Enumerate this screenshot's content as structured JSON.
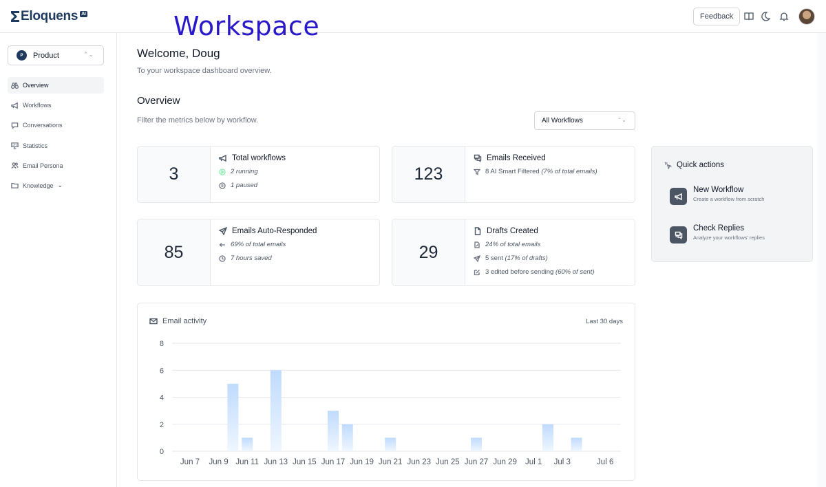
{
  "brand": {
    "name": "Eloquens",
    "badge": "AI"
  },
  "overlay_text": "Workspace",
  "header": {
    "feedback_label": "Feedback"
  },
  "sidebar": {
    "workspace": {
      "initial": "P",
      "name": "Product"
    },
    "items": [
      {
        "label": "Overview",
        "icon": "binoculars-icon",
        "active": true
      },
      {
        "label": "Workflows",
        "icon": "megaphone-icon"
      },
      {
        "label": "Conversations",
        "icon": "chat-icon"
      },
      {
        "label": "Statistics",
        "icon": "presentation-icon"
      },
      {
        "label": "Email Persona",
        "icon": "users-icon"
      },
      {
        "label": "Knowledge",
        "icon": "folder-icon"
      }
    ]
  },
  "main": {
    "welcome": "Welcome, Doug",
    "subtitle": "To your workspace dashboard overview.",
    "overview_title": "Overview",
    "filter_text": "Filter the metrics below by workflow.",
    "filter_select": "All Workflows"
  },
  "cards": {
    "workflows": {
      "value": "3",
      "title": "Total workflows",
      "running": "2 running",
      "paused": "1 paused"
    },
    "received": {
      "value": "123",
      "title": "Emails Received",
      "filtered": "8 AI Smart Filtered",
      "filtered_pct": "(7% of total emails)"
    },
    "auto": {
      "value": "85",
      "title": "Emails Auto-Responded",
      "pct": "69% of total emails",
      "saved": "7 hours saved"
    },
    "drafts": {
      "value": "29",
      "title": "Drafts Created",
      "pct": "24% of total emails",
      "sent": "5 sent",
      "sent_pct": "(17% of drafts)",
      "edited": "3 edited before sending",
      "edited_pct": "(60% of sent)"
    }
  },
  "quick_actions": {
    "title": "Quick actions",
    "items": [
      {
        "title": "New Workflow",
        "desc": "Create a workflow from scratch"
      },
      {
        "title": "Check Replies",
        "desc": "Analyze your workflows' replies"
      }
    ]
  },
  "chart": {
    "title": "Email activity",
    "range": "Last 30 days"
  },
  "colors": {
    "accent": "#1e3a5f",
    "bar_top": "#bfdbfe",
    "bar_bottom": "#eff6ff",
    "handwriting": "#2a19c8"
  },
  "chart_data": {
    "type": "bar",
    "title": "Email activity",
    "xlabel": "",
    "ylabel": "",
    "ylim": [
      0,
      8
    ],
    "yticks": [
      0,
      2,
      4,
      6,
      8
    ],
    "x_tick_labels": [
      "Jun 7",
      "Jun 9",
      "Jun 11",
      "Jun 13",
      "Jun 15",
      "Jun 17",
      "Jun 19",
      "Jun 21",
      "Jun 23",
      "Jun 25",
      "Jun 27",
      "Jun 29",
      "Jul 1",
      "Jul 3",
      "Jul 6"
    ],
    "categories": [
      "Jun 7",
      "Jun 8",
      "Jun 9",
      "Jun 10",
      "Jun 11",
      "Jun 12",
      "Jun 13",
      "Jun 14",
      "Jun 15",
      "Jun 16",
      "Jun 17",
      "Jun 18",
      "Jun 19",
      "Jun 20",
      "Jun 21",
      "Jun 22",
      "Jun 23",
      "Jun 24",
      "Jun 25",
      "Jun 26",
      "Jun 27",
      "Jun 28",
      "Jun 29",
      "Jun 30",
      "Jul 1",
      "Jul 2",
      "Jul 3",
      "Jul 4",
      "Jul 5",
      "Jul 6"
    ],
    "values": [
      0,
      0,
      0,
      5,
      1,
      0,
      6,
      0,
      0,
      0,
      3,
      2,
      0,
      0,
      1,
      0,
      0,
      0,
      0,
      0,
      1,
      0,
      0,
      0,
      0,
      2,
      0,
      1,
      0,
      0
    ],
    "grid": true
  }
}
